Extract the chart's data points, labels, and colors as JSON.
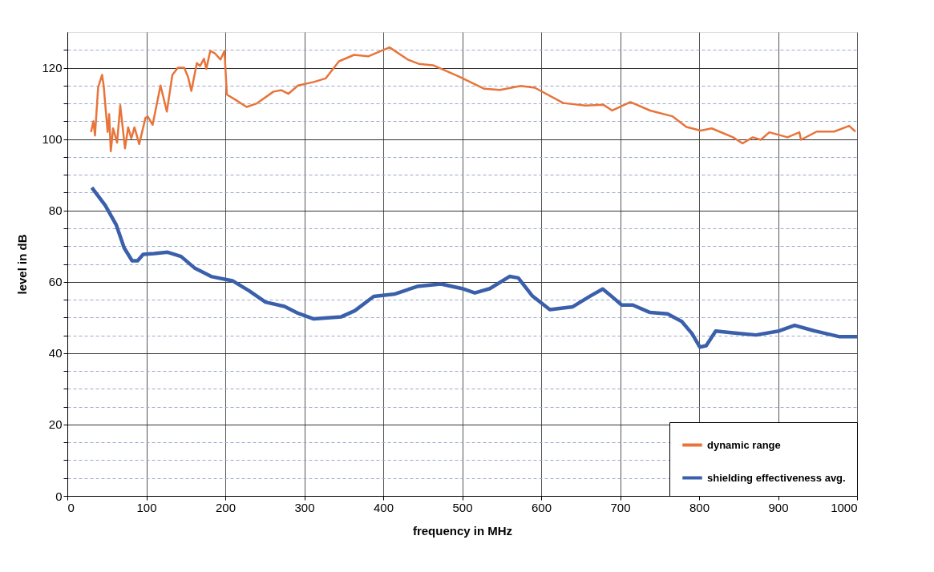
{
  "chart_data": {
    "type": "line",
    "xlabel": "frequency in MHz",
    "ylabel": "level in dB",
    "xlim": [
      0,
      1000
    ],
    "xticks": [
      0,
      100,
      200,
      300,
      400,
      500,
      600,
      700,
      800,
      900,
      1000
    ],
    "ylim": [
      0,
      130
    ],
    "yticks": [
      0,
      {
        "value": 5,
        "label": null
      },
      {
        "value": 10,
        "label": null
      },
      {
        "value": 15,
        "label": null
      },
      20,
      {
        "value": 25,
        "label": null
      },
      {
        "value": 30,
        "label": null
      },
      {
        "value": 35,
        "label": null
      },
      40,
      {
        "value": 45,
        "label": null
      },
      {
        "value": 50,
        "label": null
      },
      {
        "value": 55,
        "label": null
      },
      60,
      {
        "value": 65,
        "label": null
      },
      {
        "value": 70,
        "label": null
      },
      {
        "value": 75,
        "label": null
      },
      80,
      {
        "value": 85,
        "label": null
      },
      {
        "value": 90,
        "label": null
      },
      {
        "value": 95,
        "label": null
      },
      100,
      {
        "value": 105,
        "label": null
      },
      {
        "value": 110,
        "label": null
      },
      {
        "value": 115,
        "label": null
      },
      120,
      {
        "value": 125,
        "label": null
      }
    ],
    "grid": true,
    "legend": "bottom right",
    "marker": "none",
    "line_style": "solid",
    "series": [
      {
        "name": "dynamic range",
        "color": "#e8743b",
        "x": [
          30,
          33,
          35,
          39,
          44,
          46,
          51,
          53,
          55,
          58,
          63,
          67,
          73,
          77,
          81,
          85,
          91,
          99,
          102,
          108,
          118,
          126,
          133,
          140,
          148,
          153,
          157,
          164,
          168,
          173,
          176,
          181,
          187,
          194,
          199,
          202,
          213,
          227,
          240,
          261,
          271,
          280,
          292,
          312,
          327,
          344,
          363,
          381,
          408,
          431,
          445,
          463,
          495,
          528,
          548,
          574,
          592,
          628,
          656,
          679,
          690,
          713,
          738,
          766,
          784,
          802,
          816,
          843,
          855,
          868,
          878,
          889,
          912,
          927,
          929,
          949,
          971,
          990,
          998
        ],
        "values": [
          102,
          105,
          101,
          114.5,
          118,
          115,
          102,
          107,
          96.6,
          103,
          99,
          109.5,
          97.4,
          103.3,
          100.2,
          103.3,
          98.6,
          106,
          106.3,
          104,
          115,
          107.7,
          118,
          120,
          120,
          117.3,
          113.5,
          121.3,
          120.5,
          122.5,
          119.7,
          124.7,
          124,
          122.3,
          124.7,
          112.5,
          111,
          109,
          110,
          113.3,
          113.7,
          112.7,
          115,
          116,
          117,
          121.8,
          123.6,
          123.2,
          125.7,
          122.3,
          121.1,
          120.7,
          117.6,
          114.1,
          113.8,
          114.9,
          114.4,
          110.1,
          109.4,
          109.6,
          108,
          110.4,
          108,
          106.4,
          103.4,
          102.4,
          103,
          100.5,
          98.8,
          100.5,
          99.8,
          101.9,
          100.5,
          101.9,
          99.8,
          102.1,
          102.1,
          103.7,
          102.1
        ]
      },
      {
        "name": "shielding effectiveness avg.",
        "color": "#3a5fab",
        "x": [
          31,
          48,
          62,
          72,
          82,
          89,
          96,
          110,
          127,
          144,
          161,
          182,
          209,
          230,
          251,
          275,
          292,
          312,
          347,
          364,
          388,
          415,
          443,
          473,
          500,
          516,
          535,
          560,
          571,
          589,
          611,
          640,
          662,
          678,
          691,
          702,
          716,
          738,
          760,
          778,
          791,
          801,
          809,
          821,
          843,
          872,
          901,
          921,
          945,
          978,
          1000
        ],
        "values": [
          86.4,
          81.4,
          75.9,
          69.5,
          65.9,
          65.9,
          67.7,
          67.9,
          68.3,
          67.1,
          63.9,
          61.5,
          60.3,
          57.5,
          54.3,
          53.1,
          51.2,
          49.6,
          50.2,
          51.9,
          55.9,
          56.6,
          58.7,
          59.4,
          58.1,
          56.9,
          58.1,
          61.5,
          61.1,
          56,
          52.2,
          53,
          56,
          58,
          55.6,
          53.5,
          53.5,
          51.4,
          51,
          48.9,
          45.5,
          41.7,
          42.1,
          46.2,
          45.7,
          45.1,
          46.2,
          47.8,
          46.3,
          44.6,
          44.6
        ]
      }
    ]
  }
}
